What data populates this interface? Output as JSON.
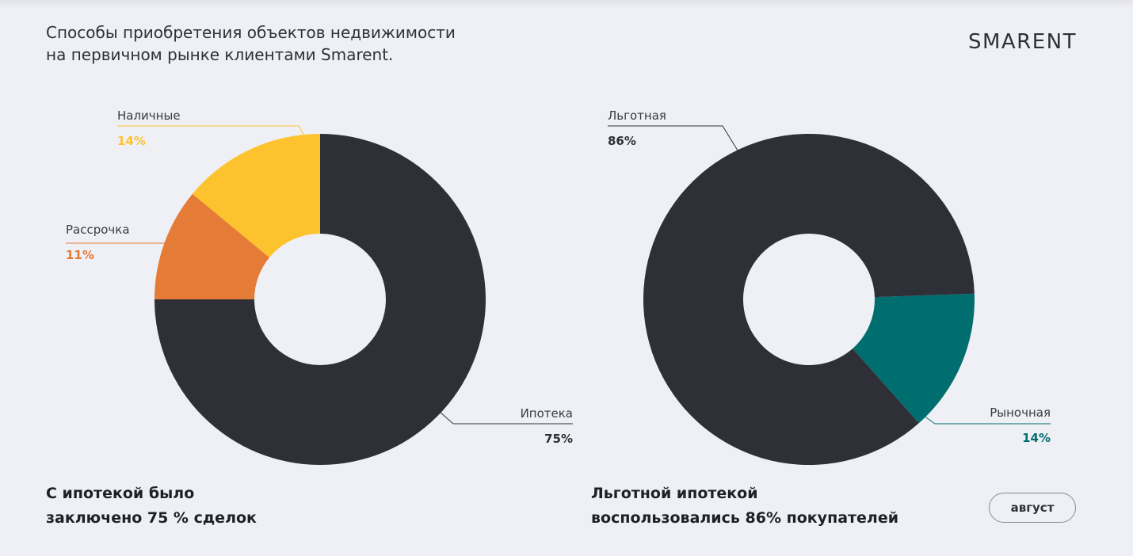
{
  "header": {
    "title_line1": "Способы приобретения объектов недвижимости",
    "title_line2": "на первичном рынке клиентами Smarent.",
    "brand": "SMARENT"
  },
  "chart_data": [
    {
      "type": "pie",
      "style": "donut",
      "slices": [
        {
          "label": "Ипотека",
          "value": 75,
          "value_label": "75%",
          "color": "#2e2f37"
        },
        {
          "label": "Рассрочка",
          "value": 11,
          "value_label": "11%",
          "color": "#e47b36"
        },
        {
          "label": "Наличные",
          "value": 14,
          "value_label": "14%",
          "color": "#fdc32f"
        }
      ],
      "caption_line1": "С ипотекой было",
      "caption_line2": "заключено 75 % сделок"
    },
    {
      "type": "pie",
      "style": "donut",
      "slices": [
        {
          "label": "Рыночная",
          "value": 14,
          "value_label": "14%",
          "color": "#006d6f"
        },
        {
          "label": "Льготная",
          "value": 86,
          "value_label": "86%",
          "color": "#2e2f37"
        }
      ],
      "caption_line1": "Льготной ипотекой",
      "caption_line2": "воспользовались 86% покупателей"
    }
  ],
  "controls": {
    "month_label": "август"
  },
  "colors": {
    "background": "#eff0f5",
    "text": "#2f3038"
  }
}
